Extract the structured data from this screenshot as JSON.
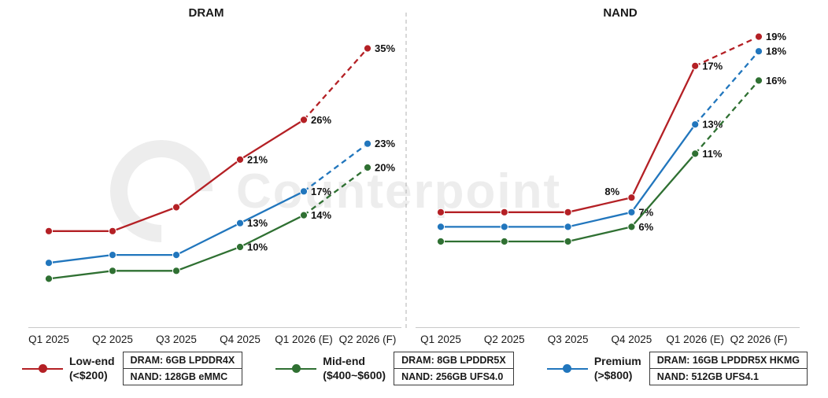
{
  "watermark": {
    "text": "Counterpoint"
  },
  "colors": {
    "low_end": "#B42025",
    "mid_end": "#2F7032",
    "premium": "#2176BD",
    "axis_line": "#C9C9C9",
    "divider": "#BDBDBD",
    "text": "#1A1A1A",
    "watermark": "#EDEDED"
  },
  "chart_data": [
    {
      "type": "line",
      "title": "DRAM",
      "categories": [
        "Q1 2025",
        "Q2 2025",
        "Q3 2025",
        "Q4 2025",
        "Q1 2026 (E)",
        "Q2 2026 (F)"
      ],
      "ylabel": "",
      "unit": "%",
      "ylim": [
        0,
        40
      ],
      "grid": false,
      "series": [
        {
          "name": "Low-end (<$200)",
          "color": "#B42025",
          "dash_from": 4,
          "values": [
            12,
            12,
            15,
            21,
            26,
            35
          ],
          "point_labels": [
            "",
            "",
            "",
            "21%",
            "26%",
            "35%"
          ]
        },
        {
          "name": "Premium (>$800)",
          "color": "#2176BD",
          "dash_from": 4,
          "values": [
            8,
            9,
            9,
            13,
            17,
            23
          ],
          "point_labels": [
            "",
            "",
            "",
            "13%",
            "17%",
            "23%"
          ]
        },
        {
          "name": "Mid-end ($400~$600)",
          "color": "#2F7032",
          "dash_from": 4,
          "values": [
            6,
            7,
            7,
            10,
            14,
            20
          ],
          "point_labels": [
            "",
            "",
            "",
            "10%",
            "14%",
            "20%"
          ]
        }
      ]
    },
    {
      "type": "line",
      "title": "NAND",
      "categories": [
        "Q1 2025",
        "Q2 2025",
        "Q3 2025",
        "Q4 2025",
        "Q1 2026 (E)",
        "Q2 2026 (F)"
      ],
      "ylabel": "",
      "unit": "%",
      "ylim": [
        0,
        22
      ],
      "grid": false,
      "series": [
        {
          "name": "Low-end (<$200)",
          "color": "#B42025",
          "dash_from": 4,
          "values": [
            7,
            7,
            7,
            8,
            17,
            19
          ],
          "point_labels": [
            "",
            "",
            "",
            "8%",
            "17%",
            "19%"
          ]
        },
        {
          "name": "Premium (>$800)",
          "color": "#2176BD",
          "dash_from": 4,
          "values": [
            6,
            6,
            6,
            7,
            13,
            18
          ],
          "point_labels": [
            "",
            "",
            "",
            "7%",
            "13%",
            "18%"
          ]
        },
        {
          "name": "Mid-end ($400~$600)",
          "color": "#2F7032",
          "dash_from": 4,
          "values": [
            5,
            5,
            5,
            6,
            11,
            16
          ],
          "point_labels": [
            "",
            "",
            "",
            "6%",
            "11%",
            "16%"
          ]
        }
      ]
    }
  ],
  "legend": [
    {
      "name": "Low-end",
      "range": "(<$200)",
      "dram": "DRAM: 6GB LPDDR4X",
      "nand": "NAND: 128GB eMMC",
      "color": "#B42025"
    },
    {
      "name": "Mid-end",
      "range": "($400~$600)",
      "dram": "DRAM: 8GB LPDDR5X",
      "nand": "NAND: 256GB UFS4.0",
      "color": "#2F7032"
    },
    {
      "name": "Premium",
      "range": "(>$800)",
      "dram": "DRAM: 16GB LPDDR5X HKMG",
      "nand": "NAND: 512GB UFS4.1",
      "color": "#2176BD"
    }
  ]
}
